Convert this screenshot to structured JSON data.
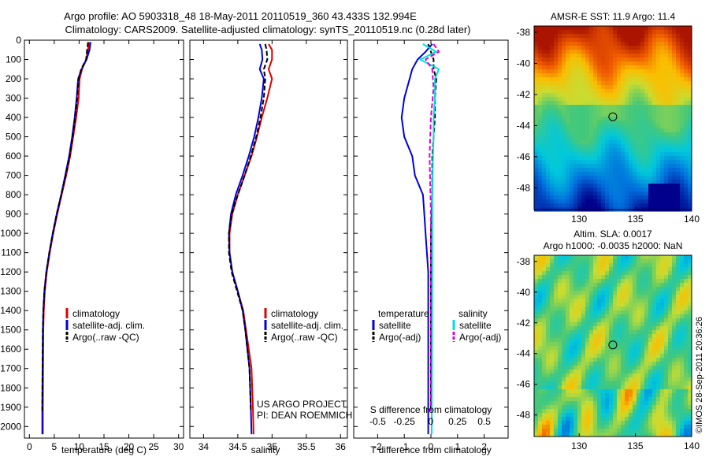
{
  "header": {
    "line1": "Argo profile: AO 5903318_48 18-May-2011 20110519_360 43.433S 132.994E",
    "line2": "Climatology: CARS2009. Satellite-adjusted climatology: synTS_20110519.nc (0.28d later)"
  },
  "side_text": "©IMOS 28-Sep-2011 20:36:26",
  "project_text": [
    "US ARGO PROJECT",
    "PI: DEAN ROEMMICH"
  ],
  "colors": {
    "climatology": "#dd0000",
    "satellite": "#0000dd",
    "argo": "#000000",
    "sal_satellite": "#00dddd",
    "sal_argo": "#dd00dd"
  },
  "chart_data": [
    {
      "type": "line",
      "name": "temperature panel",
      "xlabel": "temperature (deg C)",
      "ylabel": "",
      "xlim": [
        -1,
        31
      ],
      "ylim": [
        2060,
        0
      ],
      "y_inverted": true,
      "xticks": [
        0,
        5,
        10,
        15,
        20,
        25,
        30
      ],
      "yticks": [
        0,
        100,
        200,
        300,
        400,
        500,
        600,
        700,
        800,
        900,
        1000,
        1100,
        1200,
        1300,
        1400,
        1500,
        1600,
        1700,
        1800,
        1900,
        2000
      ],
      "legend": [
        "climatology",
        "satellite-adj. clim.",
        "Argo(..raw -QC)"
      ],
      "series": [
        {
          "name": "climatology",
          "color": "#dd0000",
          "dash": false,
          "x": [
            12,
            11.8,
            11.4,
            10.6,
            10.1,
            9.9,
            9.4,
            8.8,
            8.2,
            7.4,
            6.5,
            5.6,
            4.8,
            4.1,
            3.5,
            3.1,
            2.9,
            2.8,
            2.75,
            2.7,
            2.7
          ],
          "y": [
            10,
            50,
            100,
            150,
            200,
            300,
            400,
            500,
            600,
            700,
            800,
            900,
            1000,
            1100,
            1200,
            1300,
            1400,
            1500,
            1700,
            1900,
            2040
          ]
        },
        {
          "name": "satellite-adj. clim.",
          "color": "#0000dd",
          "dash": false,
          "x": [
            12.3,
            12.1,
            11.5,
            10.5,
            9.8,
            9.5,
            9.1,
            8.6,
            8.0,
            7.2,
            6.4,
            5.5,
            4.7,
            4.0,
            3.4,
            3.0,
            2.8,
            2.7,
            2.65,
            2.6,
            2.6
          ],
          "y": [
            10,
            50,
            100,
            150,
            200,
            300,
            400,
            500,
            600,
            700,
            800,
            900,
            1000,
            1100,
            1200,
            1300,
            1400,
            1500,
            1700,
            1900,
            2040
          ]
        },
        {
          "name": "Argo(..raw -QC)",
          "color": "#000000",
          "dash": true,
          "x": [
            11.8,
            11.6,
            11.4,
            10.4,
            9.9,
            9.6,
            9.2,
            8.7,
            8.1,
            7.3,
            6.4,
            5.5,
            4.7,
            4.0,
            3.4,
            3.0,
            2.8,
            2.7,
            2.65,
            2.6
          ],
          "y": [
            10,
            50,
            100,
            150,
            200,
            300,
            400,
            500,
            600,
            700,
            800,
            900,
            1000,
            1100,
            1200,
            1300,
            1400,
            1500,
            1700,
            1920
          ]
        }
      ]
    },
    {
      "type": "line",
      "name": "salinity panel",
      "xlabel": "salinity",
      "ylabel": "",
      "xlim": [
        33.8,
        36.1
      ],
      "ylim": [
        2060,
        0
      ],
      "y_inverted": true,
      "xticks": [
        34,
        34.5,
        35,
        35.5,
        36
      ],
      "legend": [
        "climatology",
        "satellite-adj. clim.",
        "Argo(..raw -QC)"
      ],
      "series": [
        {
          "name": "climatology",
          "color": "#dd0000",
          "dash": false,
          "x": [
            34.95,
            35.0,
            35.0,
            34.95,
            35.0,
            34.93,
            34.85,
            34.78,
            34.7,
            34.6,
            34.5,
            34.42,
            34.38,
            34.38,
            34.42,
            34.5,
            34.58,
            34.62,
            34.66,
            34.7,
            34.72,
            34.73
          ],
          "y": [
            20,
            50,
            100,
            150,
            200,
            300,
            400,
            500,
            600,
            700,
            800,
            900,
            1000,
            1100,
            1200,
            1300,
            1400,
            1500,
            1600,
            1700,
            1900,
            2040
          ]
        },
        {
          "name": "satellite-adj. clim.",
          "color": "#0000dd",
          "dash": false,
          "x": [
            34.82,
            34.85,
            34.86,
            34.82,
            34.88,
            34.85,
            34.8,
            34.74,
            34.66,
            34.57,
            34.47,
            34.4,
            34.37,
            34.38,
            34.42,
            34.5,
            34.57,
            34.61,
            34.64,
            34.67,
            34.69,
            34.7
          ],
          "y": [
            20,
            50,
            100,
            150,
            200,
            300,
            400,
            500,
            600,
            700,
            800,
            900,
            1000,
            1100,
            1200,
            1300,
            1400,
            1500,
            1600,
            1700,
            1900,
            2040
          ]
        },
        {
          "name": "Argo(..raw -QC)",
          "color": "#000000",
          "dash": true,
          "x": [
            34.9,
            34.92,
            34.93,
            34.88,
            34.9,
            34.88,
            34.83,
            34.77,
            34.69,
            34.6,
            34.5,
            34.41,
            34.37,
            34.37,
            34.41,
            34.49,
            34.57,
            34.61,
            34.64,
            34.67,
            34.69
          ],
          "y": [
            20,
            50,
            100,
            150,
            200,
            300,
            400,
            500,
            600,
            700,
            800,
            900,
            1000,
            1100,
            1200,
            1300,
            1400,
            1500,
            1600,
            1700,
            1920
          ]
        }
      ]
    },
    {
      "type": "line",
      "name": "difference panel",
      "xlabel": "T difference from climatology",
      "top_label": "S difference from climatology",
      "xlim": [
        -2.9,
        2.9
      ],
      "ylim": [
        2060,
        0
      ],
      "y_inverted": true,
      "xticks": [
        -2,
        -1,
        0,
        1,
        2
      ],
      "s_xticks": [
        -0.5,
        -0.25,
        0,
        0.25,
        0.5
      ],
      "legend_groups": [
        {
          "title": "temperature",
          "items": [
            "satellite",
            "Argo(-adj)"
          ]
        },
        {
          "title": "salinity",
          "items": [
            "satellite",
            "Argo(-adj)"
          ]
        }
      ],
      "series": [
        {
          "name": "temperature satellite",
          "color": "#0000dd",
          "dash": false,
          "x": [
            0.05,
            -0.2,
            -0.5,
            -0.7,
            -0.8,
            -1.0,
            -1.1,
            -1.0,
            -0.7,
            -0.6,
            -0.3,
            -0.25,
            -0.2,
            -0.15,
            -0.1,
            -0.1,
            -0.1,
            -0.1
          ],
          "y": [
            20,
            60,
            100,
            150,
            200,
            300,
            400,
            500,
            600,
            700,
            800,
            900,
            1000,
            1100,
            1200,
            1400,
            1700,
            2040
          ]
        },
        {
          "name": "temperature Argo(-adj)",
          "color": "#000000",
          "dash": true,
          "x": [
            -0.1,
            0.0,
            0.1,
            0.1,
            0.2,
            0.15,
            0.15,
            0.1,
            0.05,
            0.05,
            0.0,
            0.0,
            0.0
          ],
          "y": [
            20,
            60,
            100,
            150,
            200,
            300,
            400,
            500,
            600,
            800,
            1000,
            1400,
            1920
          ]
        },
        {
          "name": "salinity satellite",
          "color": "#00dddd",
          "dash": false,
          "x": [
            -0.3,
            0.2,
            -0.4,
            0.3,
            0.15,
            0.15,
            0.1,
            0.1,
            0.08,
            0.05,
            0.05,
            0.03
          ],
          "y": [
            20,
            60,
            100,
            150,
            200,
            300,
            400,
            500,
            600,
            800,
            1200,
            2040
          ]
        },
        {
          "name": "salinity Argo(-adj)",
          "color": "#dd00dd",
          "dash": true,
          "x": [
            0.1,
            0.3,
            -0.2,
            0.05,
            0.1,
            0.0,
            -0.05,
            0.0,
            0.0,
            0.0
          ],
          "y": [
            20,
            60,
            100,
            150,
            250,
            400,
            600,
            900,
            1300,
            1920
          ]
        }
      ]
    },
    {
      "type": "heatmap",
      "name": "sst map",
      "title": "AMSR-E SST: 11.9 Argo: 11.4",
      "xlim": [
        126,
        140
      ],
      "ylim": [
        -49.4,
        -37.6
      ],
      "xticks": [
        130,
        135,
        140
      ],
      "yticks": [
        -38,
        -40,
        -42,
        -44,
        -46,
        -48
      ],
      "marker": {
        "lon": 132.994,
        "lat": -43.433
      }
    },
    {
      "type": "heatmap",
      "name": "sla map",
      "title": "Altim. SLA: 0.0017",
      "subtitle": "Argo h1000: -0.0035 h2000: NaN",
      "xlim": [
        126,
        140
      ],
      "ylim": [
        -49.4,
        -37.6
      ],
      "xticks": [
        130,
        135,
        140
      ],
      "yticks": [
        -38,
        -40,
        -42,
        -44,
        -46,
        -48
      ],
      "marker": {
        "lon": 132.994,
        "lat": -43.433
      }
    }
  ]
}
